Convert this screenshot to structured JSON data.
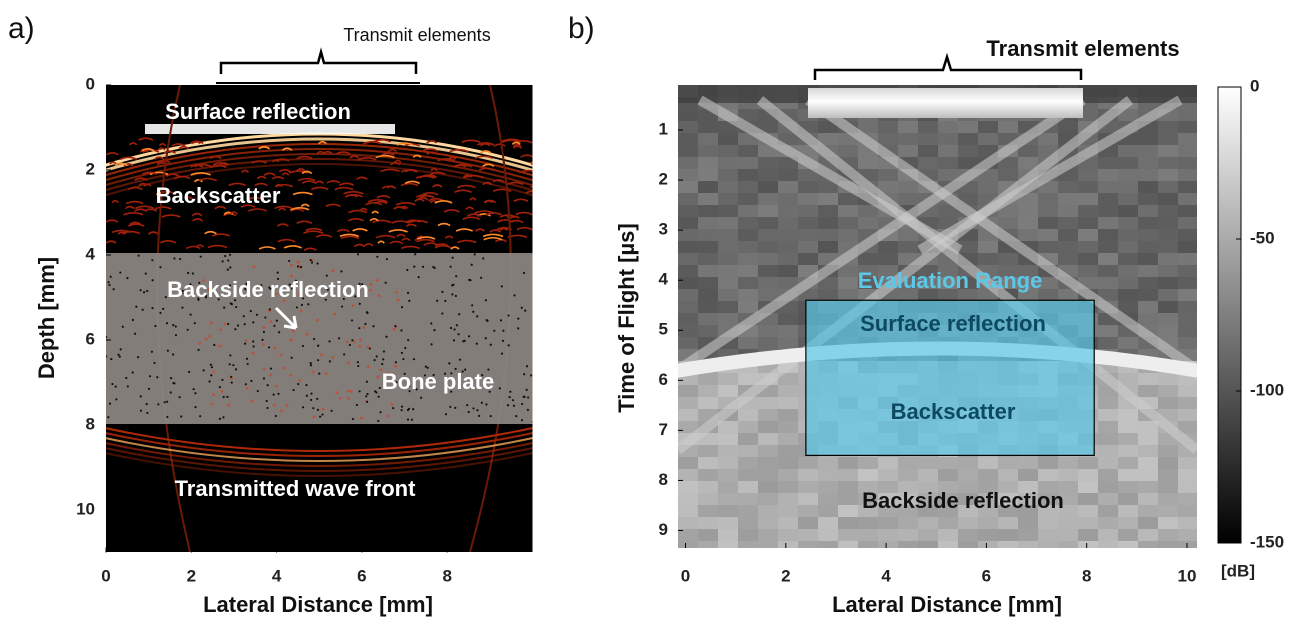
{
  "chart_data": [
    {
      "type": "image",
      "panel_label": "a)",
      "x_label": "Lateral Distance [mm]",
      "y_label": "Depth [mm]",
      "xlim": [
        0,
        10
      ],
      "ylim": [
        11,
        0
      ],
      "xticks": [
        0,
        2,
        4,
        6,
        8
      ],
      "yticks": [
        0,
        2,
        4,
        6,
        8,
        10
      ],
      "colormap": "hot",
      "annotations": [
        "Transmit elements",
        "Surface reflection",
        "Backscatter",
        "Backside reflection",
        "Bone plate",
        "Transmitted wave front"
      ]
    },
    {
      "type": "image",
      "panel_label": "b)",
      "x_label": "Lateral Distance [mm]",
      "y_label": "Time of Flight [µs]",
      "xlim": [
        -0.15,
        10.2
      ],
      "ylim": [
        9.35,
        0.1
      ],
      "xticks": [
        0,
        2,
        4,
        6,
        8,
        10
      ],
      "yticks": [
        1,
        2,
        3,
        4,
        5,
        6,
        7,
        8,
        9
      ],
      "colormap": "gray",
      "annotations": [
        "Transmit elements",
        "Surface reflection",
        "Backscatter",
        "Backside reflection"
      ],
      "region": {
        "label": "Evaluation Range",
        "x": [
          2.4,
          8.15
        ],
        "y": [
          4.4,
          7.5
        ],
        "color": "#5bc8e8"
      },
      "colorbar": {
        "label": "[dB]",
        "lim": [
          -150,
          0
        ],
        "ticks": [
          0,
          -50,
          -100,
          -150
        ]
      }
    }
  ]
}
